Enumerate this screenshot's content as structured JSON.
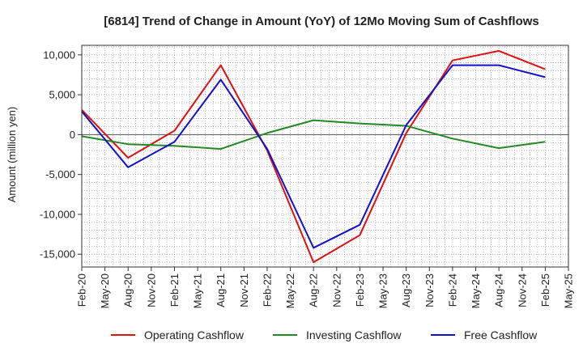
{
  "chart_data": {
    "type": "line",
    "title": "[6814]  Trend of Change in Amount (YoY) of 12Mo Moving Sum of Cashflows",
    "xlabel": "",
    "ylabel": "Amount (million yen)",
    "x_tick_labels": [
      "Feb-20",
      "May-20",
      "Aug-20",
      "Nov-20",
      "Feb-21",
      "May-21",
      "Aug-21",
      "Nov-21",
      "Feb-22",
      "May-22",
      "Aug-22",
      "Nov-22",
      "Feb-23",
      "May-23",
      "Aug-23",
      "Nov-23",
      "Feb-24",
      "May-24",
      "Aug-24",
      "Nov-24",
      "Feb-25",
      "May-25"
    ],
    "y_ticks": [
      10000,
      5000,
      0,
      -5000,
      -10000,
      -15000
    ],
    "y_tick_labels": [
      "10,000",
      "5,000",
      "0",
      "-5,000",
      "-10,000",
      "-15,000"
    ],
    "ylim": [
      -16600,
      11200
    ],
    "x_points": [
      "Feb-20",
      "Aug-20",
      "Feb-21",
      "Aug-21",
      "Feb-22",
      "Aug-22",
      "Feb-23",
      "Aug-23",
      "Feb-24",
      "Aug-24",
      "Feb-25"
    ],
    "grid": true,
    "legend_position": "bottom",
    "series": [
      {
        "name": "Operating Cashflow",
        "color": "#dd1111",
        "values": [
          3100,
          -2900,
          500,
          8700,
          -2000,
          -16000,
          -12600,
          200,
          9300,
          10500,
          8200
        ]
      },
      {
        "name": "Investing Cashflow",
        "color": "#228822",
        "values": [
          -200,
          -1200,
          -1400,
          -1800,
          200,
          1800,
          1400,
          1100,
          -500,
          -1700,
          -900
        ]
      },
      {
        "name": "Free Cashflow",
        "color": "#1111cc",
        "values": [
          2900,
          -4100,
          -900,
          6900,
          -1800,
          -14200,
          -11300,
          1200,
          8700,
          8700,
          7200
        ]
      }
    ]
  }
}
